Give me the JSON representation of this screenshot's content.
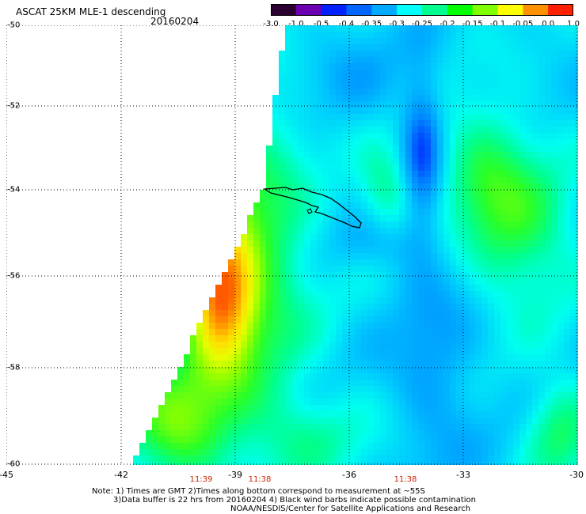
{
  "header": {
    "title": "ASCAT 25KM MLE-1 descending",
    "date": "20160204"
  },
  "colorbar": {
    "labels": [
      "-3.0",
      "-1.0",
      "-0.5",
      "-0.4",
      "-0.35",
      "-0.3",
      "-0.25",
      "-0.2",
      "-0.15",
      "-0.1",
      "-0.05",
      "0.0",
      "1.0"
    ],
    "colors": [
      "#2a0030",
      "#6a00b0",
      "#0020ff",
      "#0066ff",
      "#00aaff",
      "#00ffff",
      "#00ff90",
      "#00ff00",
      "#80ff00",
      "#ffff00",
      "#ff9000",
      "#ff2000"
    ]
  },
  "axes": {
    "x_labels": [
      "-45",
      "-42",
      "-39",
      "-36",
      "-33",
      "-30"
    ],
    "y_labels": [
      "-50",
      "-52",
      "-54",
      "-56",
      "-58",
      "-60"
    ]
  },
  "times": [
    "11:39",
    "11:38",
    "11:38"
  ],
  "notes": {
    "line1": "Note: 1) Times are GMT 2)Times along bottom correspond to measurement at ~55S",
    "line2": "3)Data buffer is 22 hrs from 20160204 4) Black wind barbs indicate possible contamination",
    "line3": "NOAA/NESDIS/Center for Satellite Applications and Research"
  }
}
